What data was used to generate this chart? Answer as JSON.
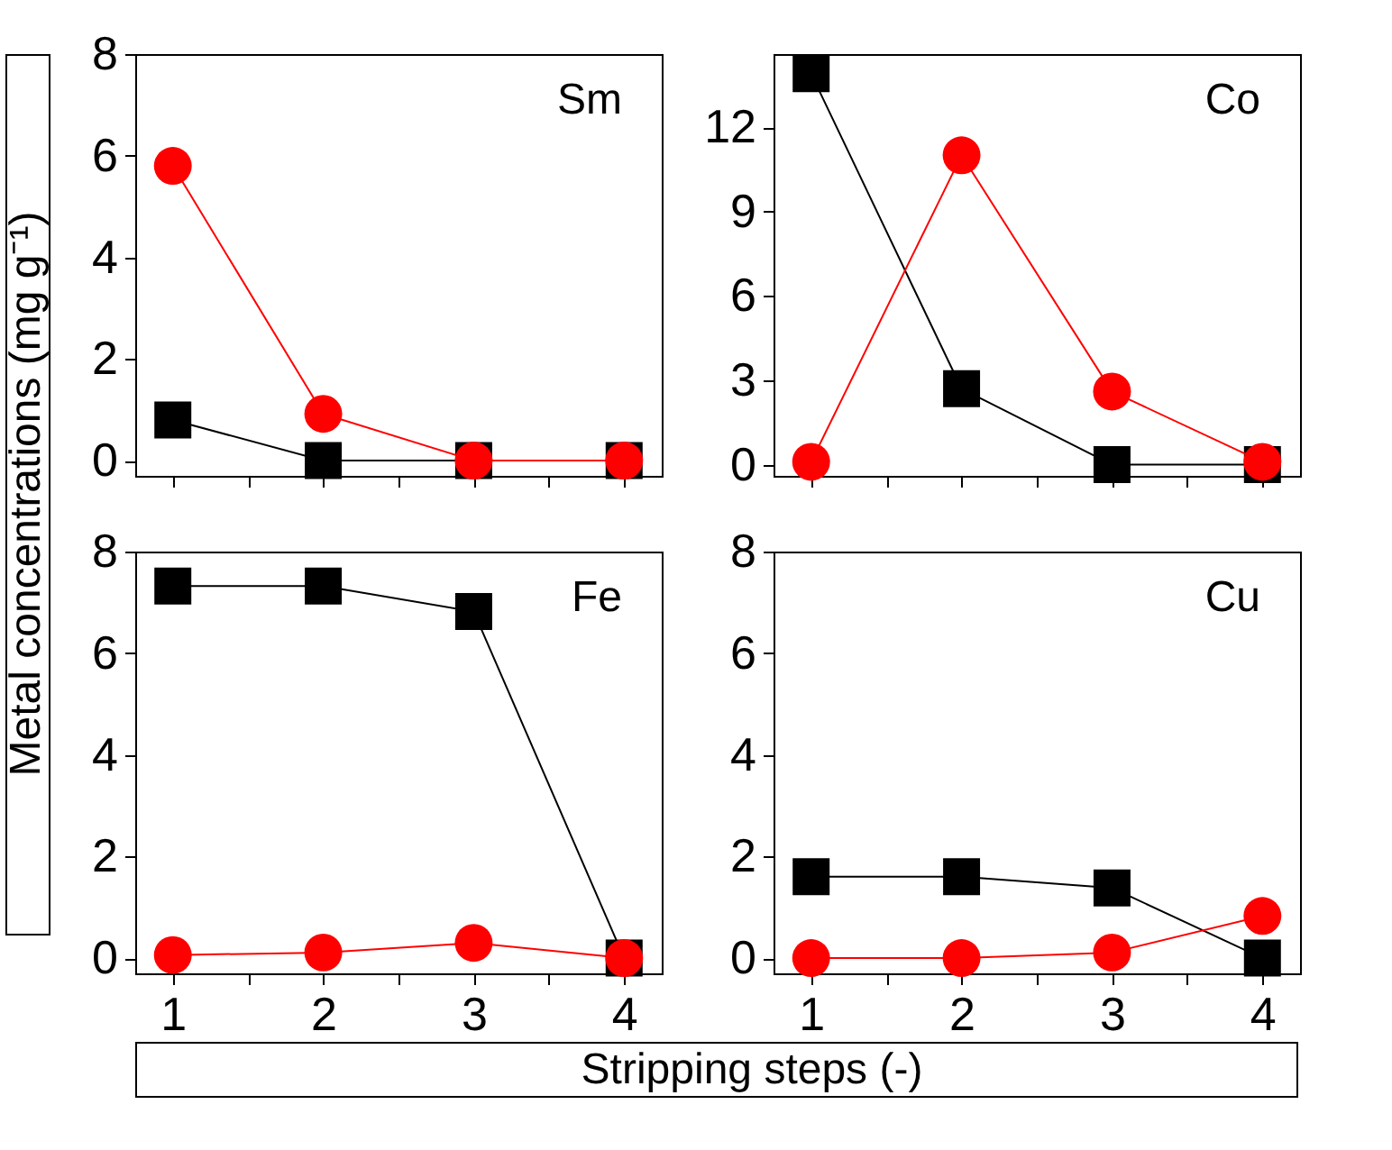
{
  "chart_data": [
    {
      "type": "line",
      "ylabel": "Metal concentrations (mg g⁻¹)",
      "annotations": [
        "Sm"
      ],
      "x": [
        1,
        2,
        3,
        4
      ],
      "xlim": [
        0.75,
        4.25
      ],
      "xticks": [
        1,
        {
          "value": 1.5,
          "label": null
        },
        2,
        {
          "value": 2.5,
          "label": null
        },
        3,
        {
          "value": 3.5,
          "label": null
        },
        4
      ],
      "ylim": [
        -0.3,
        8
      ],
      "yticks": [
        0,
        2,
        4,
        6,
        8
      ],
      "tick_labels": "y",
      "grid": false,
      "legend": false,
      "series": [
        {
          "color": "#000000",
          "marker": "square",
          "values": [
            0.8,
            0,
            0,
            0
          ]
        },
        {
          "color": "#ff0000",
          "marker": "circle",
          "values": [
            5.8,
            0.92,
            0,
            0
          ]
        }
      ]
    },
    {
      "type": "line",
      "annotations": [
        "Co"
      ],
      "x": [
        1,
        2,
        3,
        4
      ],
      "xlim": [
        0.75,
        4.25
      ],
      "xticks": [
        1,
        {
          "value": 1.5,
          "label": null
        },
        2,
        {
          "value": 2.5,
          "label": null
        },
        3,
        {
          "value": 3.5,
          "label": null
        },
        4
      ],
      "ylim": [
        -0.4,
        14.6
      ],
      "yticks": [
        0,
        3,
        6,
        9,
        12
      ],
      "tick_labels": "y",
      "grid": false,
      "legend": false,
      "series": [
        {
          "color": "#000000",
          "marker": "square",
          "values": [
            13.9,
            2.7,
            0,
            0
          ]
        },
        {
          "color": "#ff0000",
          "marker": "circle",
          "values": [
            0.1,
            11.0,
            2.6,
            0.1
          ]
        }
      ]
    },
    {
      "type": "line",
      "xlabel": "Stripping steps (-)",
      "annotations": [
        "Fe"
      ],
      "x": [
        1,
        2,
        3,
        4
      ],
      "xlim": [
        0.75,
        4.25
      ],
      "xticks": [
        1,
        {
          "value": 1.5,
          "label": null
        },
        2,
        {
          "value": 2.5,
          "label": null
        },
        3,
        {
          "value": 3.5,
          "label": null
        },
        4
      ],
      "ylim": [
        -0.3,
        8
      ],
      "yticks": [
        0,
        2,
        4,
        6,
        8
      ],
      "grid": false,
      "legend": false,
      "series": [
        {
          "color": "#000000",
          "marker": "square",
          "values": [
            7.32,
            7.32,
            6.82,
            0
          ]
        },
        {
          "color": "#ff0000",
          "marker": "circle",
          "values": [
            0.06,
            0.11,
            0.3,
            0
          ]
        }
      ]
    },
    {
      "type": "line",
      "annotations": [
        "Cu"
      ],
      "x": [
        1,
        2,
        3,
        4
      ],
      "xlim": [
        0.75,
        4.25
      ],
      "xticks": [
        1,
        {
          "value": 1.5,
          "label": null
        },
        2,
        {
          "value": 2.5,
          "label": null
        },
        3,
        {
          "value": 3.5,
          "label": null
        },
        4
      ],
      "ylim": [
        -0.3,
        8
      ],
      "yticks": [
        0,
        2,
        4,
        6,
        8
      ],
      "grid": false,
      "legend": false,
      "series": [
        {
          "color": "#000000",
          "marker": "square",
          "values": [
            1.6,
            1.6,
            1.38,
            0
          ]
        },
        {
          "color": "#ff0000",
          "marker": "circle",
          "values": [
            0,
            0,
            0.11,
            0.83
          ]
        }
      ]
    }
  ]
}
